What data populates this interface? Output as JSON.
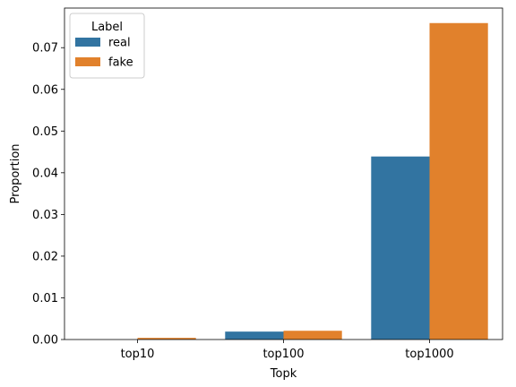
{
  "chart_data": {
    "type": "bar",
    "categories": [
      "top10",
      "top100",
      "top1000"
    ],
    "series": [
      {
        "name": "real",
        "values": [
          0.0,
          0.0019,
          0.0439
        ],
        "color": "#3274a1"
      },
      {
        "name": "fake",
        "values": [
          0.0004,
          0.0021,
          0.0759
        ],
        "color": "#e1812c"
      }
    ],
    "xlabel": "Topk",
    "ylabel": "Proportion",
    "ylim": [
      0,
      0.0795
    ],
    "yticks": [
      "0.00",
      "0.01",
      "0.02",
      "0.03",
      "0.04",
      "0.05",
      "0.06",
      "0.07"
    ],
    "ytick_values": [
      0,
      0.01,
      0.02,
      0.03,
      0.04,
      0.05,
      0.06,
      0.07
    ],
    "legend": {
      "title": "Label",
      "placement": "top-left"
    },
    "grid": false
  }
}
